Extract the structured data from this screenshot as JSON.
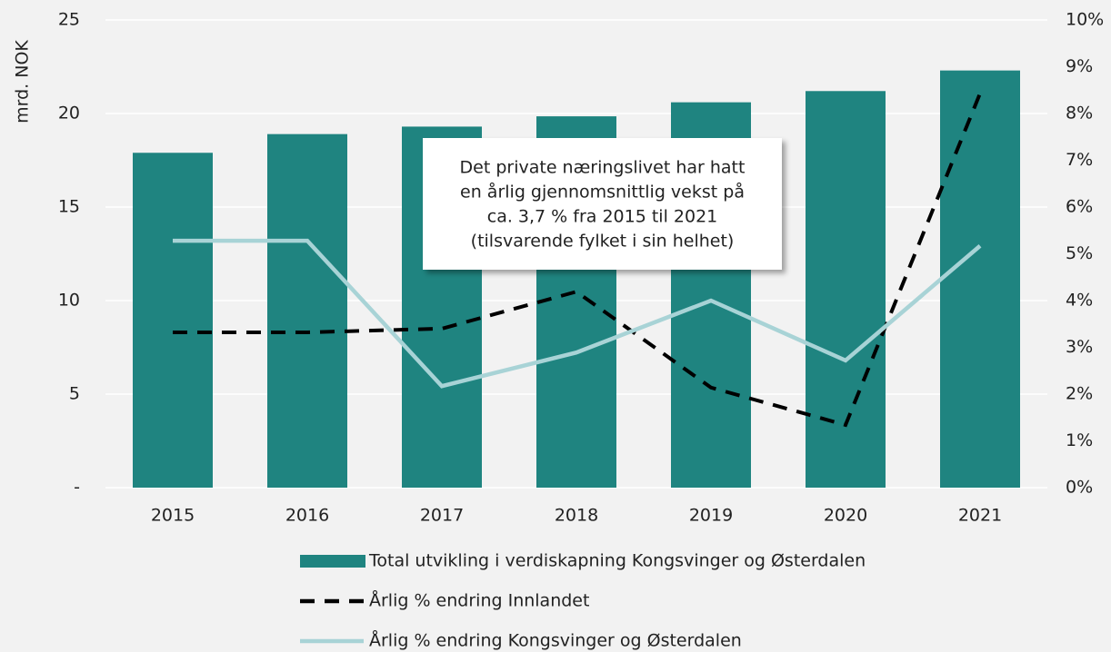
{
  "chart_data": {
    "type": "bar",
    "ylabel": "mrd. NOK",
    "categories": [
      "2015",
      "2016",
      "2017",
      "2018",
      "2019",
      "2020",
      "2021"
    ],
    "series": [
      {
        "name": "Total utvikling i verdiskapning Kongsvinger og Østerdalen",
        "type": "bar",
        "color": "#1f8480",
        "axis": "y",
        "values": [
          17.9,
          18.9,
          19.3,
          19.85,
          20.6,
          21.2,
          22.3
        ]
      },
      {
        "name": "Årlig % endring Innlandet",
        "type": "line",
        "style": "dashed",
        "color": "#000000",
        "axis": "y2",
        "values": [
          3.32,
          3.32,
          3.4,
          4.19,
          2.14,
          1.34,
          8.43
        ]
      },
      {
        "name": "Årlig % endring Kongsvinger og Østerdalen",
        "type": "line",
        "style": "solid",
        "color": "#a8d3d6",
        "axis": "y2",
        "values": [
          5.28,
          5.28,
          2.17,
          2.89,
          4.0,
          2.72,
          5.17
        ]
      }
    ],
    "ylim": [
      0,
      25
    ],
    "yticks": [
      {
        "value": 0,
        "label": "-"
      },
      5,
      10,
      15,
      20,
      25
    ],
    "y2lim": [
      0,
      10
    ],
    "y2ticks": [
      {
        "value": 0,
        "label": "0%"
      },
      {
        "value": 1,
        "label": "1%"
      },
      {
        "value": 2,
        "label": "2%"
      },
      {
        "value": 3,
        "label": "3%"
      },
      {
        "value": 4,
        "label": "4%"
      },
      {
        "value": 5,
        "label": "5%"
      },
      {
        "value": 6,
        "label": "6%"
      },
      {
        "value": 7,
        "label": "7%"
      },
      {
        "value": 8,
        "label": "8%"
      },
      {
        "value": 9,
        "label": "9%"
      },
      {
        "value": 10,
        "label": "10%"
      }
    ],
    "grid": true,
    "annotation": {
      "lines": [
        "Det private næringslivet har hatt",
        "en årlig gjennomsnittlig vekst på",
        "ca. 3,7 % fra 2015 til 2021",
        "(tilsvarende fylket i sin helhet)"
      ]
    }
  }
}
